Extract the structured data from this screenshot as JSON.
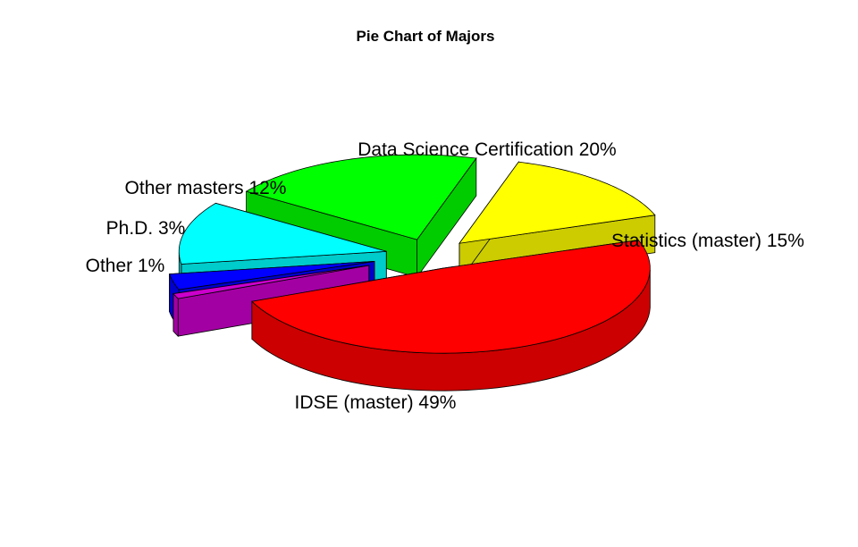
{
  "chart_data": {
    "type": "pie",
    "style": "3d-exploded",
    "title": "Pie Chart of Majors",
    "slices": [
      {
        "category": "IDSE (master)",
        "label": "IDSE (master) 49%",
        "percent": 49,
        "color": "#ff0000",
        "side_color": "#cc0000"
      },
      {
        "category": "Statistics (master)",
        "label": "Statistics (master) 15%",
        "percent": 15,
        "color": "#ffff00",
        "side_color": "#cccc00"
      },
      {
        "category": "Data Science Certification",
        "label": "Data Science Certification 20%",
        "percent": 20,
        "color": "#00ff00",
        "side_color": "#00cc00"
      },
      {
        "category": "Other masters",
        "label": "Other masters 12%",
        "percent": 12,
        "color": "#00ffff",
        "side_color": "#00cccc"
      },
      {
        "category": "Ph.D.",
        "label": "Ph.D. 3%",
        "percent": 3,
        "color": "#0000ff",
        "side_color": "#0000cc"
      },
      {
        "category": "Other",
        "label": "Other 1%",
        "percent": 1,
        "color": "#cc00cc",
        "side_color": "#a300a3"
      }
    ]
  }
}
